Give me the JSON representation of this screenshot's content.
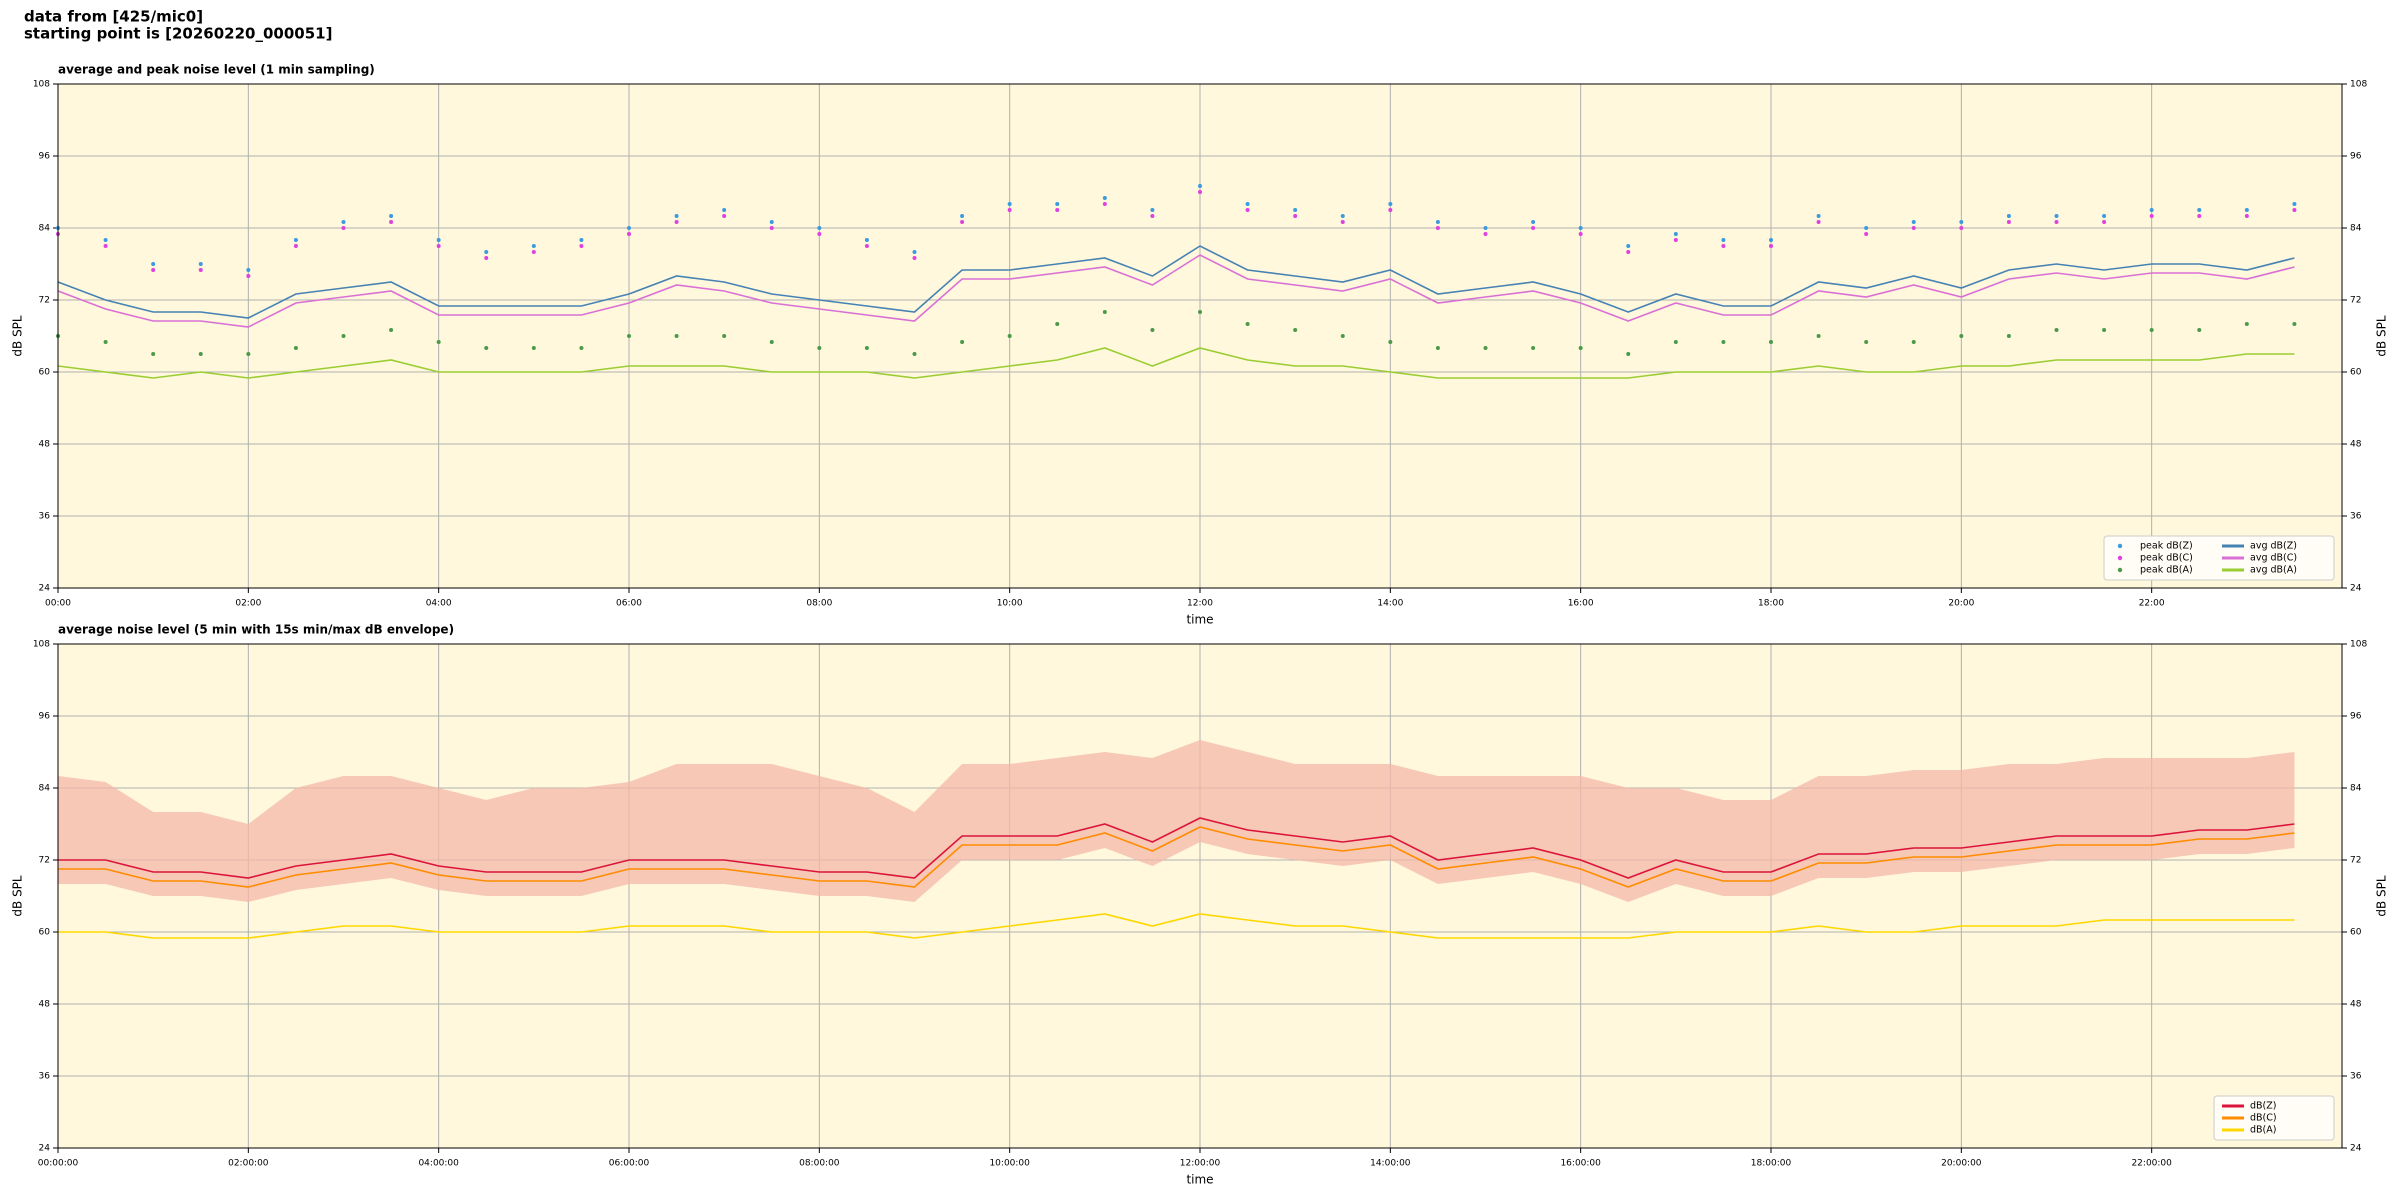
{
  "header": {
    "line1": "data from [425/mic0]",
    "line2": "starting point is [20260220_000051]"
  },
  "chart_data": [
    {
      "type": "line",
      "title": "average and peak noise level (1 min sampling)",
      "xlabel": "time",
      "ylabel": "dB SPL",
      "xlim": [
        0,
        24
      ],
      "ylim": [
        24,
        108
      ],
      "yticks": [
        24,
        36,
        48,
        60,
        72,
        84,
        96,
        108
      ],
      "xticks": [
        {
          "value": 0,
          "label": "00:00"
        },
        {
          "value": 2,
          "label": "02:00"
        },
        {
          "value": 4,
          "label": "04:00"
        },
        {
          "value": 6,
          "label": "06:00"
        },
        {
          "value": 8,
          "label": "08:00"
        },
        {
          "value": 10,
          "label": "10:00"
        },
        {
          "value": 12,
          "label": "12:00"
        },
        {
          "value": 14,
          "label": "14:00"
        },
        {
          "value": 16,
          "label": "16:00"
        },
        {
          "value": 18,
          "label": "18:00"
        },
        {
          "value": 20,
          "label": "20:00"
        },
        {
          "value": 22,
          "label": "22:00"
        }
      ],
      "grid": true,
      "legend": "lower right",
      "x": [
        0,
        0.5,
        1,
        1.5,
        2,
        2.5,
        3,
        3.5,
        4,
        4.5,
        5,
        5.5,
        6,
        6.5,
        7,
        7.5,
        8,
        8.5,
        9,
        9.5,
        10,
        10.5,
        11,
        11.5,
        12,
        12.5,
        13,
        13.5,
        14,
        14.5,
        15,
        15.5,
        16,
        16.5,
        17,
        17.5,
        18,
        18.5,
        19,
        19.5,
        20,
        20.5,
        21,
        21.5,
        22,
        22.5,
        23,
        23.5
      ],
      "series": [
        {
          "name": "peak dB(Z)",
          "kind": "scatter",
          "color": "#3b9be0",
          "values": [
            84,
            82,
            78,
            78,
            77,
            82,
            85,
            86,
            82,
            80,
            81,
            82,
            84,
            86,
            87,
            85,
            84,
            82,
            80,
            86,
            88,
            88,
            89,
            87,
            91,
            88,
            87,
            86,
            88,
            85,
            84,
            85,
            84,
            81,
            83,
            82,
            82,
            86,
            84,
            85,
            85,
            86,
            86,
            86,
            87,
            87,
            87,
            88
          ]
        },
        {
          "name": "peak dB(C)",
          "kind": "scatter",
          "color": "#e040e0",
          "values": [
            83,
            81,
            77,
            77,
            76,
            81,
            84,
            85,
            81,
            79,
            80,
            81,
            83,
            85,
            86,
            84,
            83,
            81,
            79,
            85,
            87,
            87,
            88,
            86,
            90,
            87,
            86,
            85,
            87,
            84,
            83,
            84,
            83,
            80,
            82,
            81,
            81,
            85,
            83,
            84,
            84,
            85,
            85,
            85,
            86,
            86,
            86,
            87
          ]
        },
        {
          "name": "peak dB(A)",
          "kind": "scatter",
          "color": "#4a9a4a",
          "values": [
            66,
            65,
            63,
            63,
            63,
            64,
            66,
            67,
            65,
            64,
            64,
            64,
            66,
            66,
            66,
            65,
            64,
            64,
            63,
            65,
            66,
            68,
            70,
            67,
            70,
            68,
            67,
            66,
            65,
            64,
            64,
            64,
            64,
            63,
            65,
            65,
            65,
            66,
            65,
            65,
            66,
            66,
            67,
            67,
            67,
            67,
            68,
            68
          ]
        },
        {
          "name": "avg dB(Z)",
          "kind": "line",
          "color": "#4682b4",
          "values": [
            75,
            72,
            70,
            70,
            69,
            73,
            74,
            75,
            71,
            71,
            71,
            71,
            73,
            76,
            75,
            73,
            72,
            71,
            70,
            77,
            77,
            78,
            79,
            76,
            81,
            77,
            76,
            75,
            77,
            73,
            74,
            75,
            73,
            70,
            73,
            71,
            71,
            75,
            74,
            76,
            74,
            77,
            78,
            77,
            78,
            78,
            77,
            79
          ]
        },
        {
          "name": "avg dB(C)",
          "kind": "line",
          "color": "#da70d6",
          "values": [
            73.5,
            70.5,
            68.5,
            68.5,
            67.5,
            71.5,
            72.5,
            73.5,
            69.5,
            69.5,
            69.5,
            69.5,
            71.5,
            74.5,
            73.5,
            71.5,
            70.5,
            69.5,
            68.5,
            75.5,
            75.5,
            76.5,
            77.5,
            74.5,
            79.5,
            75.5,
            74.5,
            73.5,
            75.5,
            71.5,
            72.5,
            73.5,
            71.5,
            68.5,
            71.5,
            69.5,
            69.5,
            73.5,
            72.5,
            74.5,
            72.5,
            75.5,
            76.5,
            75.5,
            76.5,
            76.5,
            75.5,
            77.5
          ]
        },
        {
          "name": "avg dB(A)",
          "kind": "line",
          "color": "#9acd32",
          "values": [
            61,
            60,
            59,
            60,
            59,
            60,
            61,
            62,
            60,
            60,
            60,
            60,
            61,
            61,
            61,
            60,
            60,
            60,
            59,
            60,
            61,
            62,
            64,
            61,
            64,
            62,
            61,
            61,
            60,
            59,
            59,
            59,
            59,
            59,
            60,
            60,
            60,
            61,
            60,
            60,
            61,
            61,
            62,
            62,
            62,
            62,
            63,
            63
          ]
        }
      ]
    },
    {
      "type": "line",
      "title": "average noise level (5 min with 15s min/max dB envelope)",
      "xlabel": "time",
      "ylabel": "dB SPL",
      "xlim": [
        0,
        24
      ],
      "ylim": [
        24,
        108
      ],
      "yticks": [
        24,
        36,
        48,
        60,
        72,
        84,
        96,
        108
      ],
      "xticks": [
        {
          "value": 0,
          "label": "00:00:00"
        },
        {
          "value": 2,
          "label": "02:00:00"
        },
        {
          "value": 4,
          "label": "04:00:00"
        },
        {
          "value": 6,
          "label": "06:00:00"
        },
        {
          "value": 8,
          "label": "08:00:00"
        },
        {
          "value": 10,
          "label": "10:00:00"
        },
        {
          "value": 12,
          "label": "12:00:00"
        },
        {
          "value": 14,
          "label": "14:00:00"
        },
        {
          "value": 16,
          "label": "16:00:00"
        },
        {
          "value": 18,
          "label": "18:00:00"
        },
        {
          "value": 20,
          "label": "20:00:00"
        },
        {
          "value": 22,
          "label": "22:00:00"
        }
      ],
      "grid": true,
      "legend": "lower right",
      "x": [
        0,
        0.5,
        1,
        1.5,
        2,
        2.5,
        3,
        3.5,
        4,
        4.5,
        5,
        5.5,
        6,
        6.5,
        7,
        7.5,
        8,
        8.5,
        9,
        9.5,
        10,
        10.5,
        11,
        11.5,
        12,
        12.5,
        13,
        13.5,
        14,
        14.5,
        15,
        15.5,
        16,
        16.5,
        17,
        17.5,
        18,
        18.5,
        19,
        19.5,
        20,
        20.5,
        21,
        21.5,
        22,
        22.5,
        23,
        23.5
      ],
      "envelope": {
        "color": "#f4b8a8",
        "low": [
          68,
          68,
          66,
          66,
          65,
          67,
          68,
          69,
          67,
          66,
          66,
          66,
          68,
          68,
          68,
          67,
          66,
          66,
          65,
          72,
          72,
          72,
          74,
          71,
          75,
          73,
          72,
          71,
          72,
          68,
          69,
          70,
          68,
          65,
          68,
          66,
          66,
          69,
          69,
          70,
          70,
          71,
          72,
          72,
          72,
          73,
          73,
          74
        ],
        "high": [
          86,
          85,
          80,
          80,
          78,
          84,
          86,
          86,
          84,
          82,
          84,
          84,
          85,
          88,
          88,
          88,
          86,
          84,
          80,
          88,
          88,
          89,
          90,
          89,
          92,
          90,
          88,
          88,
          88,
          86,
          86,
          86,
          86,
          84,
          84,
          82,
          82,
          86,
          86,
          87,
          87,
          88,
          88,
          89,
          89,
          89,
          89,
          90
        ]
      },
      "series": [
        {
          "name": "dB(Z)",
          "kind": "line",
          "color": "#dc143c",
          "values": [
            72,
            72,
            70,
            70,
            69,
            71,
            72,
            73,
            71,
            70,
            70,
            70,
            72,
            72,
            72,
            71,
            70,
            70,
            69,
            76,
            76,
            76,
            78,
            75,
            79,
            77,
            76,
            75,
            76,
            72,
            73,
            74,
            72,
            69,
            72,
            70,
            70,
            73,
            73,
            74,
            74,
            75,
            76,
            76,
            76,
            77,
            77,
            78
          ]
        },
        {
          "name": "dB(C)",
          "kind": "line",
          "color": "#ff8c00",
          "values": [
            70.5,
            70.5,
            68.5,
            68.5,
            67.5,
            69.5,
            70.5,
            71.5,
            69.5,
            68.5,
            68.5,
            68.5,
            70.5,
            70.5,
            70.5,
            69.5,
            68.5,
            68.5,
            67.5,
            74.5,
            74.5,
            74.5,
            76.5,
            73.5,
            77.5,
            75.5,
            74.5,
            73.5,
            74.5,
            70.5,
            71.5,
            72.5,
            70.5,
            67.5,
            70.5,
            68.5,
            68.5,
            71.5,
            71.5,
            72.5,
            72.5,
            73.5,
            74.5,
            74.5,
            74.5,
            75.5,
            75.5,
            76.5
          ]
        },
        {
          "name": "dB(A)",
          "kind": "line",
          "color": "#ffd700",
          "values": [
            60,
            60,
            59,
            59,
            59,
            60,
            61,
            61,
            60,
            60,
            60,
            60,
            61,
            61,
            61,
            60,
            60,
            60,
            59,
            60,
            61,
            62,
            63,
            61,
            63,
            62,
            61,
            61,
            60,
            59,
            59,
            59,
            59,
            59,
            60,
            60,
            60,
            61,
            60,
            60,
            61,
            61,
            61,
            62,
            62,
            62,
            62,
            62
          ]
        }
      ]
    }
  ]
}
